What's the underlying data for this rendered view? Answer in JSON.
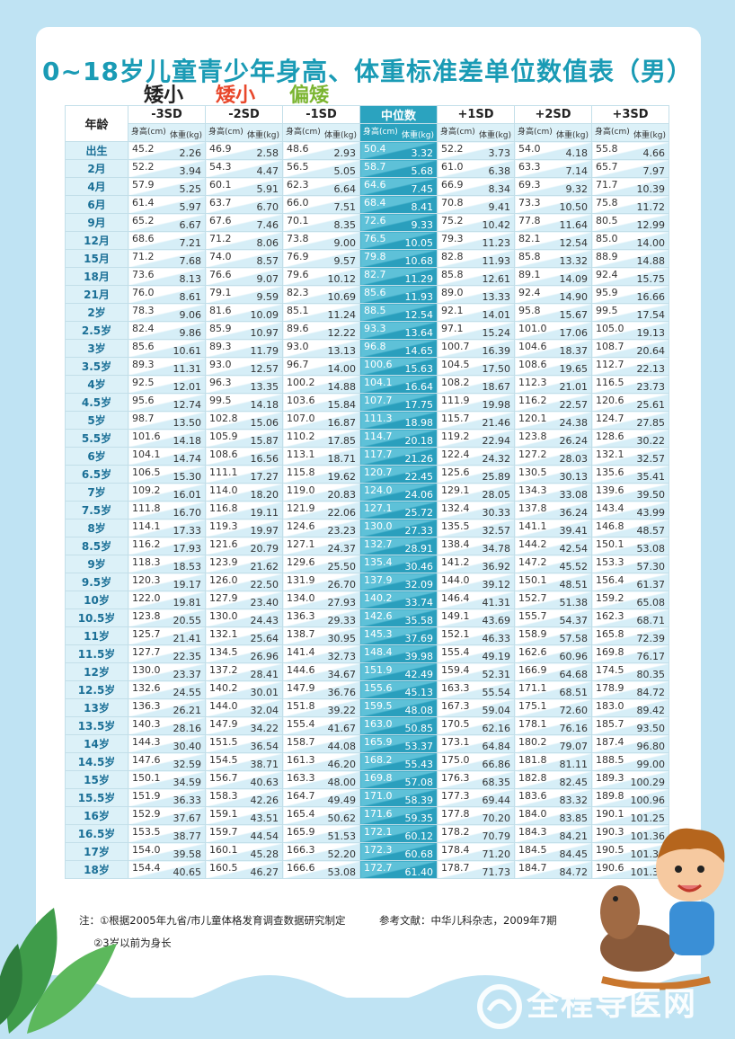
{
  "title": "0~18岁儿童青少年身高、体重标准差单位数值表（男）",
  "legend": [
    "矮小",
    "矮小",
    "偏矮"
  ],
  "colors": {
    "accent": "#1a9bb5",
    "median": "#2ba3bf",
    "red": "#e8472b",
    "green": "#7bb531"
  },
  "headers": {
    "age": "年龄",
    "height_label": "身高(cm)",
    "weight_label": "体重(kg)",
    "sd": [
      "-3SD",
      "-2SD",
      "-1SD",
      "中位数",
      "+1SD",
      "+2SD",
      "+3SD"
    ]
  },
  "rows": [
    {
      "age": "出生",
      "values": [
        [
          "45.2",
          "2.26"
        ],
        [
          "46.9",
          "2.58"
        ],
        [
          "48.6",
          "2.93"
        ],
        [
          "50.4",
          "3.32"
        ],
        [
          "52.2",
          "3.73"
        ],
        [
          "54.0",
          "4.18"
        ],
        [
          "55.8",
          "4.66"
        ]
      ]
    },
    {
      "age": "2月",
      "values": [
        [
          "52.2",
          "3.94"
        ],
        [
          "54.3",
          "4.47"
        ],
        [
          "56.5",
          "5.05"
        ],
        [
          "58.7",
          "5.68"
        ],
        [
          "61.0",
          "6.38"
        ],
        [
          "63.3",
          "7.14"
        ],
        [
          "65.7",
          "7.97"
        ]
      ]
    },
    {
      "age": "4月",
      "values": [
        [
          "57.9",
          "5.25"
        ],
        [
          "60.1",
          "5.91"
        ],
        [
          "62.3",
          "6.64"
        ],
        [
          "64.6",
          "7.45"
        ],
        [
          "66.9",
          "8.34"
        ],
        [
          "69.3",
          "9.32"
        ],
        [
          "71.7",
          "10.39"
        ]
      ]
    },
    {
      "age": "6月",
      "values": [
        [
          "61.4",
          "5.97"
        ],
        [
          "63.7",
          "6.70"
        ],
        [
          "66.0",
          "7.51"
        ],
        [
          "68.4",
          "8.41"
        ],
        [
          "70.8",
          "9.41"
        ],
        [
          "73.3",
          "10.50"
        ],
        [
          "75.8",
          "11.72"
        ]
      ]
    },
    {
      "age": "9月",
      "values": [
        [
          "65.2",
          "6.67"
        ],
        [
          "67.6",
          "7.46"
        ],
        [
          "70.1",
          "8.35"
        ],
        [
          "72.6",
          "9.33"
        ],
        [
          "75.2",
          "10.42"
        ],
        [
          "77.8",
          "11.64"
        ],
        [
          "80.5",
          "12.99"
        ]
      ]
    },
    {
      "age": "12月",
      "values": [
        [
          "68.6",
          "7.21"
        ],
        [
          "71.2",
          "8.06"
        ],
        [
          "73.8",
          "9.00"
        ],
        [
          "76.5",
          "10.05"
        ],
        [
          "79.3",
          "11.23"
        ],
        [
          "82.1",
          "12.54"
        ],
        [
          "85.0",
          "14.00"
        ]
      ]
    },
    {
      "age": "15月",
      "values": [
        [
          "71.2",
          "7.68"
        ],
        [
          "74.0",
          "8.57"
        ],
        [
          "76.9",
          "9.57"
        ],
        [
          "79.8",
          "10.68"
        ],
        [
          "82.8",
          "11.93"
        ],
        [
          "85.8",
          "13.32"
        ],
        [
          "88.9",
          "14.88"
        ]
      ]
    },
    {
      "age": "18月",
      "values": [
        [
          "73.6",
          "8.13"
        ],
        [
          "76.6",
          "9.07"
        ],
        [
          "79.6",
          "10.12"
        ],
        [
          "82.7",
          "11.29"
        ],
        [
          "85.8",
          "12.61"
        ],
        [
          "89.1",
          "14.09"
        ],
        [
          "92.4",
          "15.75"
        ]
      ]
    },
    {
      "age": "21月",
      "values": [
        [
          "76.0",
          "8.61"
        ],
        [
          "79.1",
          "9.59"
        ],
        [
          "82.3",
          "10.69"
        ],
        [
          "85.6",
          "11.93"
        ],
        [
          "89.0",
          "13.33"
        ],
        [
          "92.4",
          "14.90"
        ],
        [
          "95.9",
          "16.66"
        ]
      ]
    },
    {
      "age": "2岁",
      "values": [
        [
          "78.3",
          "9.06"
        ],
        [
          "81.6",
          "10.09"
        ],
        [
          "85.1",
          "11.24"
        ],
        [
          "88.5",
          "12.54"
        ],
        [
          "92.1",
          "14.01"
        ],
        [
          "95.8",
          "15.67"
        ],
        [
          "99.5",
          "17.54"
        ]
      ]
    },
    {
      "age": "2.5岁",
      "values": [
        [
          "82.4",
          "9.86"
        ],
        [
          "85.9",
          "10.97"
        ],
        [
          "89.6",
          "12.22"
        ],
        [
          "93.3",
          "13.64"
        ],
        [
          "97.1",
          "15.24"
        ],
        [
          "101.0",
          "17.06"
        ],
        [
          "105.0",
          "19.13"
        ]
      ]
    },
    {
      "age": "3岁",
      "values": [
        [
          "85.6",
          "10.61"
        ],
        [
          "89.3",
          "11.79"
        ],
        [
          "93.0",
          "13.13"
        ],
        [
          "96.8",
          "14.65"
        ],
        [
          "100.7",
          "16.39"
        ],
        [
          "104.6",
          "18.37"
        ],
        [
          "108.7",
          "20.64"
        ]
      ]
    },
    {
      "age": "3.5岁",
      "values": [
        [
          "89.3",
          "11.31"
        ],
        [
          "93.0",
          "12.57"
        ],
        [
          "96.7",
          "14.00"
        ],
        [
          "100.6",
          "15.63"
        ],
        [
          "104.5",
          "17.50"
        ],
        [
          "108.6",
          "19.65"
        ],
        [
          "112.7",
          "22.13"
        ]
      ]
    },
    {
      "age": "4岁",
      "values": [
        [
          "92.5",
          "12.01"
        ],
        [
          "96.3",
          "13.35"
        ],
        [
          "100.2",
          "14.88"
        ],
        [
          "104.1",
          "16.64"
        ],
        [
          "108.2",
          "18.67"
        ],
        [
          "112.3",
          "21.01"
        ],
        [
          "116.5",
          "23.73"
        ]
      ]
    },
    {
      "age": "4.5岁",
      "values": [
        [
          "95.6",
          "12.74"
        ],
        [
          "99.5",
          "14.18"
        ],
        [
          "103.6",
          "15.84"
        ],
        [
          "107.7",
          "17.75"
        ],
        [
          "111.9",
          "19.98"
        ],
        [
          "116.2",
          "22.57"
        ],
        [
          "120.6",
          "25.61"
        ]
      ]
    },
    {
      "age": "5岁",
      "values": [
        [
          "98.7",
          "13.50"
        ],
        [
          "102.8",
          "15.06"
        ],
        [
          "107.0",
          "16.87"
        ],
        [
          "111.3",
          "18.98"
        ],
        [
          "115.7",
          "21.46"
        ],
        [
          "120.1",
          "24.38"
        ],
        [
          "124.7",
          "27.85"
        ]
      ]
    },
    {
      "age": "5.5岁",
      "values": [
        [
          "101.6",
          "14.18"
        ],
        [
          "105.9",
          "15.87"
        ],
        [
          "110.2",
          "17.85"
        ],
        [
          "114.7",
          "20.18"
        ],
        [
          "119.2",
          "22.94"
        ],
        [
          "123.8",
          "26.24"
        ],
        [
          "128.6",
          "30.22"
        ]
      ]
    },
    {
      "age": "6岁",
      "values": [
        [
          "104.1",
          "14.74"
        ],
        [
          "108.6",
          "16.56"
        ],
        [
          "113.1",
          "18.71"
        ],
        [
          "117.7",
          "21.26"
        ],
        [
          "122.4",
          "24.32"
        ],
        [
          "127.2",
          "28.03"
        ],
        [
          "132.1",
          "32.57"
        ]
      ]
    },
    {
      "age": "6.5岁",
      "values": [
        [
          "106.5",
          "15.30"
        ],
        [
          "111.1",
          "17.27"
        ],
        [
          "115.8",
          "19.62"
        ],
        [
          "120.7",
          "22.45"
        ],
        [
          "125.6",
          "25.89"
        ],
        [
          "130.5",
          "30.13"
        ],
        [
          "135.6",
          "35.41"
        ]
      ]
    },
    {
      "age": "7岁",
      "values": [
        [
          "109.2",
          "16.01"
        ],
        [
          "114.0",
          "18.20"
        ],
        [
          "119.0",
          "20.83"
        ],
        [
          "124.0",
          "24.06"
        ],
        [
          "129.1",
          "28.05"
        ],
        [
          "134.3",
          "33.08"
        ],
        [
          "139.6",
          "39.50"
        ]
      ]
    },
    {
      "age": "7.5岁",
      "values": [
        [
          "111.8",
          "16.70"
        ],
        [
          "116.8",
          "19.11"
        ],
        [
          "121.9",
          "22.06"
        ],
        [
          "127.1",
          "25.72"
        ],
        [
          "132.4",
          "30.33"
        ],
        [
          "137.8",
          "36.24"
        ],
        [
          "143.4",
          "43.99"
        ]
      ]
    },
    {
      "age": "8岁",
      "values": [
        [
          "114.1",
          "17.33"
        ],
        [
          "119.3",
          "19.97"
        ],
        [
          "124.6",
          "23.23"
        ],
        [
          "130.0",
          "27.33"
        ],
        [
          "135.5",
          "32.57"
        ],
        [
          "141.1",
          "39.41"
        ],
        [
          "146.8",
          "48.57"
        ]
      ]
    },
    {
      "age": "8.5岁",
      "values": [
        [
          "116.2",
          "17.93"
        ],
        [
          "121.6",
          "20.79"
        ],
        [
          "127.1",
          "24.37"
        ],
        [
          "132.7",
          "28.91"
        ],
        [
          "138.4",
          "34.78"
        ],
        [
          "144.2",
          "42.54"
        ],
        [
          "150.1",
          "53.08"
        ]
      ]
    },
    {
      "age": "9岁",
      "values": [
        [
          "118.3",
          "18.53"
        ],
        [
          "123.9",
          "21.62"
        ],
        [
          "129.6",
          "25.50"
        ],
        [
          "135.4",
          "30.46"
        ],
        [
          "141.2",
          "36.92"
        ],
        [
          "147.2",
          "45.52"
        ],
        [
          "153.3",
          "57.30"
        ]
      ]
    },
    {
      "age": "9.5岁",
      "values": [
        [
          "120.3",
          "19.17"
        ],
        [
          "126.0",
          "22.50"
        ],
        [
          "131.9",
          "26.70"
        ],
        [
          "137.9",
          "32.09"
        ],
        [
          "144.0",
          "39.12"
        ],
        [
          "150.1",
          "48.51"
        ],
        [
          "156.4",
          "61.37"
        ]
      ]
    },
    {
      "age": "10岁",
      "values": [
        [
          "122.0",
          "19.81"
        ],
        [
          "127.9",
          "23.40"
        ],
        [
          "134.0",
          "27.93"
        ],
        [
          "140.2",
          "33.74"
        ],
        [
          "146.4",
          "41.31"
        ],
        [
          "152.7",
          "51.38"
        ],
        [
          "159.2",
          "65.08"
        ]
      ]
    },
    {
      "age": "10.5岁",
      "values": [
        [
          "123.8",
          "20.55"
        ],
        [
          "130.0",
          "24.43"
        ],
        [
          "136.3",
          "29.33"
        ],
        [
          "142.6",
          "35.58"
        ],
        [
          "149.1",
          "43.69"
        ],
        [
          "155.7",
          "54.37"
        ],
        [
          "162.3",
          "68.71"
        ]
      ]
    },
    {
      "age": "11岁",
      "values": [
        [
          "125.7",
          "21.41"
        ],
        [
          "132.1",
          "25.64"
        ],
        [
          "138.7",
          "30.95"
        ],
        [
          "145.3",
          "37.69"
        ],
        [
          "152.1",
          "46.33"
        ],
        [
          "158.9",
          "57.58"
        ],
        [
          "165.8",
          "72.39"
        ]
      ]
    },
    {
      "age": "11.5岁",
      "values": [
        [
          "127.7",
          "22.35"
        ],
        [
          "134.5",
          "26.96"
        ],
        [
          "141.4",
          "32.73"
        ],
        [
          "148.4",
          "39.98"
        ],
        [
          "155.4",
          "49.19"
        ],
        [
          "162.6",
          "60.96"
        ],
        [
          "169.8",
          "76.17"
        ]
      ]
    },
    {
      "age": "12岁",
      "values": [
        [
          "130.0",
          "23.37"
        ],
        [
          "137.2",
          "28.41"
        ],
        [
          "144.6",
          "34.67"
        ],
        [
          "151.9",
          "42.49"
        ],
        [
          "159.4",
          "52.31"
        ],
        [
          "166.9",
          "64.68"
        ],
        [
          "174.5",
          "80.35"
        ]
      ]
    },
    {
      "age": "12.5岁",
      "values": [
        [
          "132.6",
          "24.55"
        ],
        [
          "140.2",
          "30.01"
        ],
        [
          "147.9",
          "36.76"
        ],
        [
          "155.6",
          "45.13"
        ],
        [
          "163.3",
          "55.54"
        ],
        [
          "171.1",
          "68.51"
        ],
        [
          "178.9",
          "84.72"
        ]
      ]
    },
    {
      "age": "13岁",
      "values": [
        [
          "136.3",
          "26.21"
        ],
        [
          "144.0",
          "32.04"
        ],
        [
          "151.8",
          "39.22"
        ],
        [
          "159.5",
          "48.08"
        ],
        [
          "167.3",
          "59.04"
        ],
        [
          "175.1",
          "72.60"
        ],
        [
          "183.0",
          "89.42"
        ]
      ]
    },
    {
      "age": "13.5岁",
      "values": [
        [
          "140.3",
          "28.16"
        ],
        [
          "147.9",
          "34.22"
        ],
        [
          "155.4",
          "41.67"
        ],
        [
          "163.0",
          "50.85"
        ],
        [
          "170.5",
          "62.16"
        ],
        [
          "178.1",
          "76.16"
        ],
        [
          "185.7",
          "93.50"
        ]
      ]
    },
    {
      "age": "14岁",
      "values": [
        [
          "144.3",
          "30.40"
        ],
        [
          "151.5",
          "36.54"
        ],
        [
          "158.7",
          "44.08"
        ],
        [
          "165.9",
          "53.37"
        ],
        [
          "173.1",
          "64.84"
        ],
        [
          "180.2",
          "79.07"
        ],
        [
          "187.4",
          "96.80"
        ]
      ]
    },
    {
      "age": "14.5岁",
      "values": [
        [
          "147.6",
          "32.59"
        ],
        [
          "154.5",
          "38.71"
        ],
        [
          "161.3",
          "46.20"
        ],
        [
          "168.2",
          "55.43"
        ],
        [
          "175.0",
          "66.86"
        ],
        [
          "181.8",
          "81.11"
        ],
        [
          "188.5",
          "99.00"
        ]
      ]
    },
    {
      "age": "15岁",
      "values": [
        [
          "150.1",
          "34.59"
        ],
        [
          "156.7",
          "40.63"
        ],
        [
          "163.3",
          "48.00"
        ],
        [
          "169.8",
          "57.08"
        ],
        [
          "176.3",
          "68.35"
        ],
        [
          "182.8",
          "82.45"
        ],
        [
          "189.3",
          "100.29"
        ]
      ]
    },
    {
      "age": "15.5岁",
      "values": [
        [
          "151.9",
          "36.33"
        ],
        [
          "158.3",
          "42.26"
        ],
        [
          "164.7",
          "49.49"
        ],
        [
          "171.0",
          "58.39"
        ],
        [
          "177.3",
          "69.44"
        ],
        [
          "183.6",
          "83.32"
        ],
        [
          "189.8",
          "100.96"
        ]
      ]
    },
    {
      "age": "16岁",
      "values": [
        [
          "152.9",
          "37.67"
        ],
        [
          "159.1",
          "43.51"
        ],
        [
          "165.4",
          "50.62"
        ],
        [
          "171.6",
          "59.35"
        ],
        [
          "177.8",
          "70.20"
        ],
        [
          "184.0",
          "83.85"
        ],
        [
          "190.1",
          "101.25"
        ]
      ]
    },
    {
      "age": "16.5岁",
      "values": [
        [
          "153.5",
          "38.77"
        ],
        [
          "159.7",
          "44.54"
        ],
        [
          "165.9",
          "51.53"
        ],
        [
          "172.1",
          "60.12"
        ],
        [
          "178.2",
          "70.79"
        ],
        [
          "184.3",
          "84.21"
        ],
        [
          "190.3",
          "101.36"
        ]
      ]
    },
    {
      "age": "17岁",
      "values": [
        [
          "154.0",
          "39.58"
        ],
        [
          "160.1",
          "45.28"
        ],
        [
          "166.3",
          "52.20"
        ],
        [
          "172.3",
          "60.68"
        ],
        [
          "178.4",
          "71.20"
        ],
        [
          "184.5",
          "84.45"
        ],
        [
          "190.5",
          "101.39"
        ]
      ]
    },
    {
      "age": "18岁",
      "values": [
        [
          "154.4",
          "40.65"
        ],
        [
          "160.5",
          "46.27"
        ],
        [
          "166.6",
          "53.08"
        ],
        [
          "172.7",
          "61.40"
        ],
        [
          "178.7",
          "71.73"
        ],
        [
          "184.7",
          "84.72"
        ],
        [
          "190.6",
          "101.36"
        ]
      ]
    }
  ],
  "notes": {
    "note1": "注：①根据2005年九省/市儿童体格发育调查数据研究制定",
    "note2": "②3岁以前为身长",
    "reference": "参考文献：中华儿科杂志，2009年7期"
  },
  "watermark": "全程导医网",
  "icons": [
    "leaf-decoration-icon",
    "boy-on-rocking-horse-icon",
    "watermark-logo-icon"
  ]
}
